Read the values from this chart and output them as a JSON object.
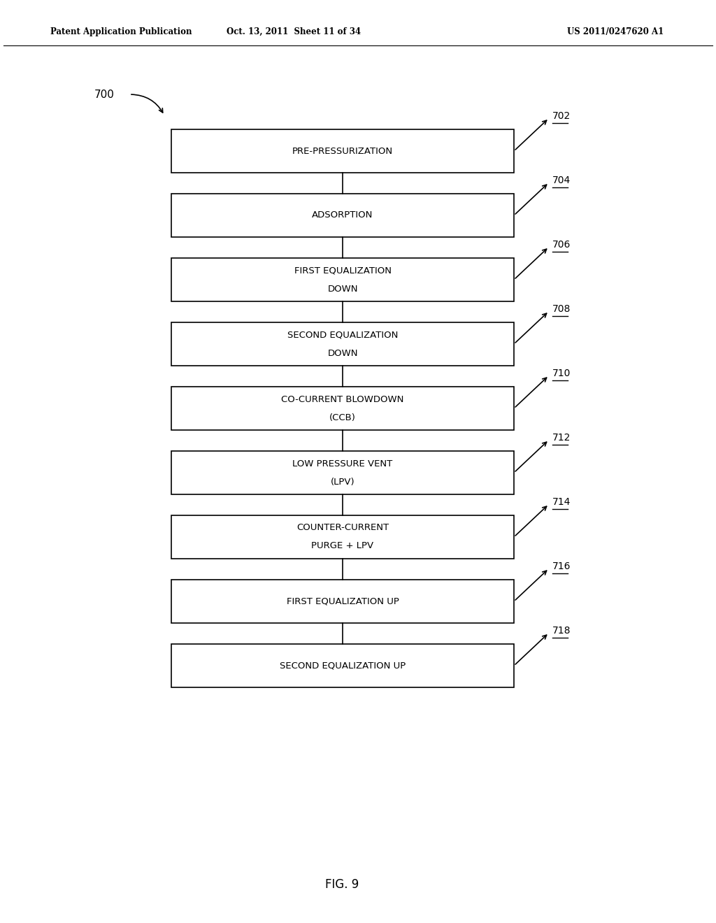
{
  "header_left": "Patent Application Publication",
  "header_middle": "Oct. 13, 2011  Sheet 11 of 34",
  "header_right": "US 2011/0247620 A1",
  "figure_label": "FIG. 9",
  "diagram_label": "700",
  "boxes": [
    {
      "label": "PRE-PRESSURIZATION",
      "ref": "702",
      "lines": [
        "PRE-PRESSURIZATION"
      ]
    },
    {
      "label": "ADSORPTION",
      "ref": "704",
      "lines": [
        "ADSORPTION"
      ]
    },
    {
      "label": "FIRST EQUALIZATION DOWN",
      "ref": "706",
      "lines": [
        "FIRST EQUALIZATION",
        "DOWN"
      ]
    },
    {
      "label": "SECOND EQUALIZATION DOWN",
      "ref": "708",
      "lines": [
        "SECOND EQUALIZATION",
        "DOWN"
      ]
    },
    {
      "label": "CO-CURRENT BLOWDOWN (CCB)",
      "ref": "710",
      "lines": [
        "CO-CURRENT BLOWDOWN",
        "(CCB)"
      ]
    },
    {
      "label": "LOW PRESSURE VENT (LPV)",
      "ref": "712",
      "lines": [
        "LOW PRESSURE VENT",
        "(LPV)"
      ]
    },
    {
      "label": "COUNTER-CURRENT PURGE + LPV",
      "ref": "714",
      "lines": [
        "COUNTER-CURRENT",
        "PURGE + LPV"
      ]
    },
    {
      "label": "FIRST EQUALIZATION UP",
      "ref": "716",
      "lines": [
        "FIRST EQUALIZATION UP"
      ]
    },
    {
      "label": "SECOND EQUALIZATION UP",
      "ref": "718",
      "lines": [
        "SECOND EQUALIZATION UP"
      ]
    }
  ],
  "background_color": "#ffffff",
  "box_color": "#ffffff",
  "box_edge_color": "#000000",
  "text_color": "#000000",
  "arrow_color": "#000000",
  "line_color": "#000000"
}
